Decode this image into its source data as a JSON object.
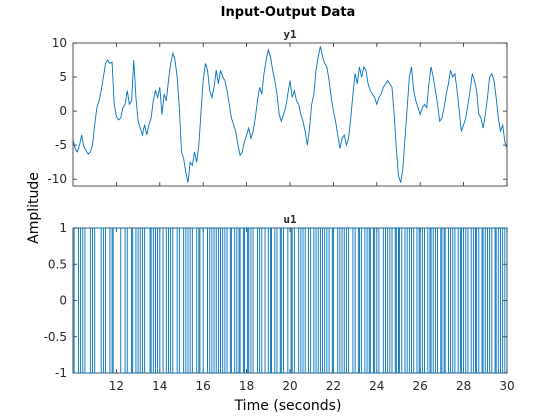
{
  "chart_data": {
    "type": "line",
    "title": "Input-Output Data",
    "xlabel": "Time (seconds)",
    "ylabel": "Amplitude",
    "xlim": [
      10,
      30
    ],
    "x_ticks": [
      12,
      14,
      16,
      18,
      20,
      22,
      24,
      26,
      28,
      30
    ],
    "grid": false,
    "line_color": "#0072BD",
    "panels": [
      {
        "title": "y1",
        "ylim": [
          -11,
          10
        ],
        "y_ticks": [
          -10,
          -5,
          0,
          5,
          10
        ],
        "series": [
          {
            "points": [
              [
                10.0,
                -4.2
              ],
              [
                10.1,
                -5.5
              ],
              [
                10.2,
                -6.0
              ],
              [
                10.3,
                -5.0
              ],
              [
                10.4,
                -3.5
              ],
              [
                10.5,
                -5.2
              ],
              [
                10.6,
                -5.8
              ],
              [
                10.7,
                -6.3
              ],
              [
                10.8,
                -6.0
              ],
              [
                10.9,
                -5.0
              ],
              [
                11.0,
                -2.0
              ],
              [
                11.1,
                0.5
              ],
              [
                11.2,
                1.5
              ],
              [
                11.3,
                3.0
              ],
              [
                11.4,
                5.0
              ],
              [
                11.5,
                7.0
              ],
              [
                11.6,
                7.5
              ],
              [
                11.7,
                7.0
              ],
              [
                11.8,
                7.2
              ],
              [
                11.9,
                1.0
              ],
              [
                12.0,
                -0.8
              ],
              [
                12.1,
                -1.3
              ],
              [
                12.2,
                -1.0
              ],
              [
                12.3,
                0.5
              ],
              [
                12.4,
                1.0
              ],
              [
                12.5,
                3.0
              ],
              [
                12.6,
                1.0
              ],
              [
                12.7,
                1.5
              ],
              [
                12.8,
                7.5
              ],
              [
                12.9,
                2.0
              ],
              [
                13.0,
                -1.5
              ],
              [
                13.1,
                -2.5
              ],
              [
                13.2,
                -3.5
              ],
              [
                13.3,
                -2.0
              ],
              [
                13.4,
                -3.5
              ],
              [
                13.5,
                -2.0
              ],
              [
                13.6,
                -1.0
              ],
              [
                13.7,
                1.5
              ],
              [
                13.8,
                3.0
              ],
              [
                13.9,
                2.0
              ],
              [
                14.0,
                3.5
              ],
              [
                14.1,
                -0.5
              ],
              [
                14.2,
                2.5
              ],
              [
                14.3,
                1.5
              ],
              [
                14.4,
                4.5
              ],
              [
                14.5,
                7.0
              ],
              [
                14.6,
                8.5
              ],
              [
                14.7,
                7.5
              ],
              [
                14.8,
                5.0
              ],
              [
                14.9,
                0.5
              ],
              [
                15.0,
                -6.0
              ],
              [
                15.1,
                -7.0
              ],
              [
                15.2,
                -9.0
              ],
              [
                15.3,
                -10.5
              ],
              [
                15.4,
                -7.5
              ],
              [
                15.5,
                -8.0
              ],
              [
                15.6,
                -6.0
              ],
              [
                15.7,
                -7.5
              ],
              [
                15.8,
                -5.0
              ],
              [
                15.9,
                0.0
              ],
              [
                16.0,
                4.5
              ],
              [
                16.1,
                7.0
              ],
              [
                16.2,
                6.0
              ],
              [
                16.3,
                3.0
              ],
              [
                16.4,
                2.0
              ],
              [
                16.5,
                3.5
              ],
              [
                16.6,
                6.0
              ],
              [
                16.7,
                4.0
              ],
              [
                16.8,
                6.0
              ],
              [
                16.9,
                5.0
              ],
              [
                17.0,
                4.5
              ],
              [
                17.1,
                3.0
              ],
              [
                17.2,
                1.0
              ],
              [
                17.3,
                -1.0
              ],
              [
                17.4,
                -2.0
              ],
              [
                17.5,
                -3.0
              ],
              [
                17.6,
                -5.0
              ],
              [
                17.7,
                -6.5
              ],
              [
                17.8,
                -6.0
              ],
              [
                17.9,
                -4.5
              ],
              [
                18.0,
                -3.5
              ],
              [
                18.1,
                -2.5
              ],
              [
                18.2,
                -4.0
              ],
              [
                18.3,
                -3.0
              ],
              [
                18.4,
                -1.0
              ],
              [
                18.5,
                1.5
              ],
              [
                18.6,
                3.5
              ],
              [
                18.7,
                2.5
              ],
              [
                18.8,
                5.5
              ],
              [
                18.9,
                7.5
              ],
              [
                19.0,
                9.0
              ],
              [
                19.1,
                8.0
              ],
              [
                19.2,
                6.0
              ],
              [
                19.3,
                4.5
              ],
              [
                19.4,
                2.5
              ],
              [
                19.5,
                -0.5
              ],
              [
                19.6,
                -1.5
              ],
              [
                19.7,
                -0.5
              ],
              [
                19.8,
                0.5
              ],
              [
                19.9,
                2.5
              ],
              [
                20.0,
                4.5
              ],
              [
                20.1,
                2.0
              ],
              [
                20.2,
                3.0
              ],
              [
                20.3,
                1.5
              ],
              [
                20.4,
                1.0
              ],
              [
                20.5,
                -0.5
              ],
              [
                20.6,
                -1.5
              ],
              [
                20.7,
                -3.0
              ],
              [
                20.8,
                -5.0
              ],
              [
                20.9,
                -2.5
              ],
              [
                21.0,
                1.0
              ],
              [
                21.1,
                2.5
              ],
              [
                21.2,
                6.0
              ],
              [
                21.3,
                8.0
              ],
              [
                21.4,
                9.5
              ],
              [
                21.5,
                8.0
              ],
              [
                21.6,
                7.0
              ],
              [
                21.7,
                6.5
              ],
              [
                21.8,
                4.5
              ],
              [
                21.9,
                2.0
              ],
              [
                22.0,
                0.0
              ],
              [
                22.1,
                -1.5
              ],
              [
                22.2,
                -3.5
              ],
              [
                22.3,
                -5.5
              ],
              [
                22.4,
                -4.0
              ],
              [
                22.5,
                -3.5
              ],
              [
                22.6,
                -5.0
              ],
              [
                22.7,
                -4.0
              ],
              [
                22.8,
                -1.0
              ],
              [
                22.9,
                2.5
              ],
              [
                23.0,
                5.5
              ],
              [
                23.1,
                4.0
              ],
              [
                23.2,
                6.5
              ],
              [
                23.3,
                5.0
              ],
              [
                23.4,
                6.5
              ],
              [
                23.5,
                6.0
              ],
              [
                23.6,
                4.0
              ],
              [
                23.7,
                3.0
              ],
              [
                23.8,
                2.5
              ],
              [
                23.9,
                2.0
              ],
              [
                24.0,
                1.0
              ],
              [
                24.1,
                2.0
              ],
              [
                24.2,
                2.5
              ],
              [
                24.3,
                3.5
              ],
              [
                24.4,
                4.0
              ],
              [
                24.5,
                4.5
              ],
              [
                24.6,
                4.0
              ],
              [
                24.7,
                3.5
              ],
              [
                24.8,
                -0.5
              ],
              [
                24.9,
                -5.5
              ],
              [
                25.0,
                -9.5
              ],
              [
                25.1,
                -10.5
              ],
              [
                25.2,
                -8.5
              ],
              [
                25.3,
                -4.0
              ],
              [
                25.4,
                0.5
              ],
              [
                25.5,
                5.0
              ],
              [
                25.6,
                6.5
              ],
              [
                25.7,
                3.0
              ],
              [
                25.8,
                1.5
              ],
              [
                25.9,
                0.5
              ],
              [
                26.0,
                -0.5
              ],
              [
                26.1,
                0.5
              ],
              [
                26.2,
                1.0
              ],
              [
                26.3,
                0.5
              ],
              [
                26.4,
                4.0
              ],
              [
                26.5,
                6.5
              ],
              [
                26.6,
                5.0
              ],
              [
                26.7,
                3.0
              ],
              [
                26.8,
                1.0
              ],
              [
                26.9,
                -1.5
              ],
              [
                27.0,
                -1.0
              ],
              [
                27.1,
                0.5
              ],
              [
                27.2,
                2.5
              ],
              [
                27.3,
                4.0
              ],
              [
                27.4,
                6.0
              ],
              [
                27.5,
                5.0
              ],
              [
                27.6,
                5.5
              ],
              [
                27.7,
                3.0
              ],
              [
                27.8,
                0.0
              ],
              [
                27.9,
                -3.0
              ],
              [
                28.0,
                -2.0
              ],
              [
                28.1,
                -1.0
              ],
              [
                28.2,
                1.0
              ],
              [
                28.3,
                3.0
              ],
              [
                28.4,
                5.5
              ],
              [
                28.5,
                4.5
              ],
              [
                28.6,
                3.0
              ],
              [
                28.7,
                -0.5
              ],
              [
                28.8,
                -1.0
              ],
              [
                28.9,
                -2.5
              ],
              [
                29.0,
                -0.5
              ],
              [
                29.1,
                2.0
              ],
              [
                29.2,
                5.0
              ],
              [
                29.3,
                5.5
              ],
              [
                29.4,
                4.5
              ],
              [
                29.5,
                2.0
              ],
              [
                29.6,
                -1.0
              ],
              [
                29.7,
                -3.0
              ],
              [
                29.8,
                -2.0
              ],
              [
                29.9,
                -4.5
              ],
              [
                30.0,
                -5.5
              ]
            ]
          }
        ]
      },
      {
        "title": "u1",
        "ylim": [
          -1,
          1
        ],
        "y_ticks": [
          -1,
          -0.5,
          0,
          0.5,
          1
        ],
        "series": [
          {
            "step": true,
            "switch_times": [
              10.05,
              10.25,
              10.35,
              10.45,
              10.55,
              10.8,
              10.9,
              11.0,
              11.3,
              11.4,
              11.5,
              11.7,
              11.8,
              11.85,
              12.2,
              12.4,
              12.5,
              12.7,
              12.75,
              12.9,
              13.0,
              13.1,
              13.2,
              13.3,
              13.55,
              13.6,
              13.7,
              13.8,
              13.9,
              14.0,
              14.15,
              14.3,
              14.4,
              14.5,
              14.6,
              14.8,
              14.9,
              15.1,
              15.2,
              15.3,
              15.4,
              15.5,
              15.7,
              15.8,
              15.85,
              16.0,
              16.2,
              16.3,
              16.4,
              16.5,
              16.6,
              16.7,
              16.8,
              16.9,
              17.0,
              17.1,
              17.25,
              17.3,
              17.45,
              17.55,
              17.65,
              17.7,
              17.85,
              17.9,
              18.05,
              18.1,
              18.2,
              18.3,
              18.5,
              18.6,
              18.7,
              18.85,
              19.0,
              19.1,
              19.15,
              19.3,
              19.4,
              19.55,
              19.6,
              19.7,
              19.9,
              20.05,
              20.1,
              20.2,
              20.4,
              20.5,
              20.6,
              20.7,
              20.85,
              20.95,
              21.1,
              21.2,
              21.3,
              21.4,
              21.5,
              21.6,
              21.7,
              21.8,
              21.95,
              22.0,
              22.2,
              22.3,
              22.4,
              22.5,
              22.6,
              22.7,
              22.9,
              23.0,
              23.15,
              23.2,
              23.3,
              23.45,
              23.55,
              23.65,
              23.7,
              23.85,
              23.9,
              24.0,
              24.1,
              24.3,
              24.4,
              24.5,
              24.6,
              24.7,
              24.85,
              24.9,
              25.0,
              25.05,
              25.15,
              25.3,
              25.4,
              25.5,
              25.6,
              25.7,
              25.85,
              25.95,
              26.0,
              26.1,
              26.2,
              26.35,
              26.45,
              26.5,
              26.6,
              26.7,
              26.8,
              26.95,
              27.0,
              27.1,
              27.15,
              27.3,
              27.4,
              27.5,
              27.6,
              27.75,
              27.85,
              27.9,
              28.0,
              28.1,
              28.2,
              28.35,
              28.45,
              28.55,
              28.6,
              28.7,
              28.85,
              28.9,
              29.0,
              29.1,
              29.2,
              29.3,
              29.45,
              29.5,
              29.6,
              29.7,
              29.8,
              29.9
            ],
            "initial_value": 1
          }
        ]
      }
    ]
  }
}
